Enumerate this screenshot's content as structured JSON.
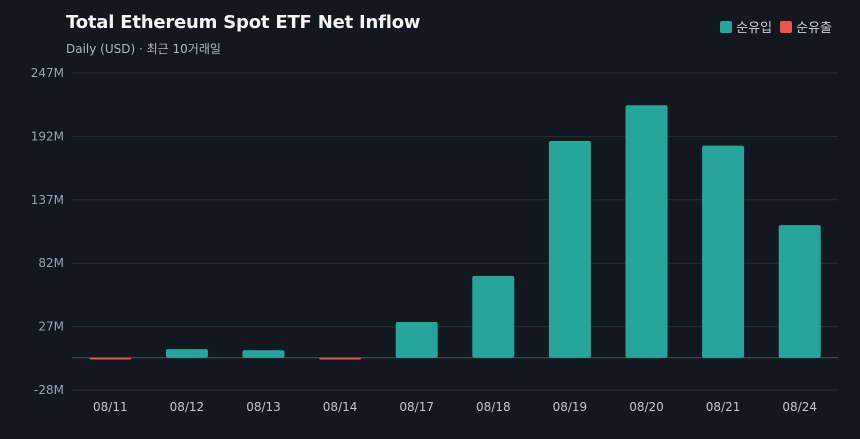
{
  "colors": {
    "background": "#121820",
    "inflow": "#26a69a",
    "outflow": "#ef5350",
    "grid": "#252c36",
    "zero_line": "#4a525e"
  },
  "legend": {
    "inflow_label": "순유입",
    "outflow_label": "순유출"
  },
  "chart_data": {
    "type": "bar",
    "title": "Total Ethereum Spot ETF Net Inflow",
    "subtitle": "Daily (USD) · 최근 10거래일",
    "categories": [
      "08/11",
      "08/12",
      "08/13",
      "08/14",
      "08/17",
      "08/18",
      "08/19",
      "08/20",
      "08/21",
      "08/24"
    ],
    "values": [
      -1.5,
      7.5,
      6.5,
      -1.5,
      31,
      71,
      188,
      219,
      184,
      115
    ],
    "unit": "M",
    "ylim": [
      -28,
      247
    ],
    "yticks": [
      -28,
      27,
      82,
      137,
      192,
      247
    ],
    "ytick_labels": [
      "-28M",
      "27M",
      "82M",
      "137M",
      "192M",
      "247M"
    ],
    "grid": true,
    "legend_position": "top-right"
  }
}
